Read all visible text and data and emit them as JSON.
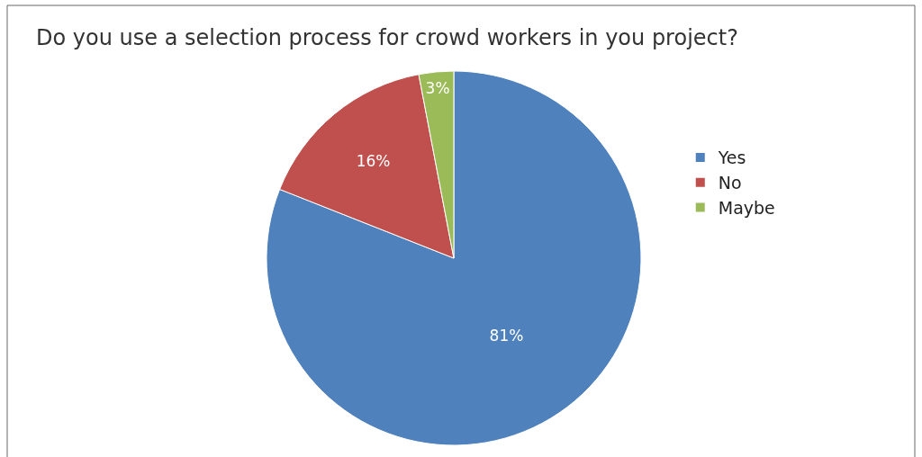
{
  "chart_data": {
    "type": "pie",
    "title": "Do you use a selection process for crowd workers in you project?",
    "categories": [
      "Yes",
      "No",
      "Maybe"
    ],
    "values": [
      81,
      16,
      3
    ],
    "colors": [
      "#4f81bd",
      "#c0504d",
      "#9bbb59"
    ],
    "value_labels": [
      "81%",
      "16%",
      "3%"
    ],
    "legend": "right"
  }
}
